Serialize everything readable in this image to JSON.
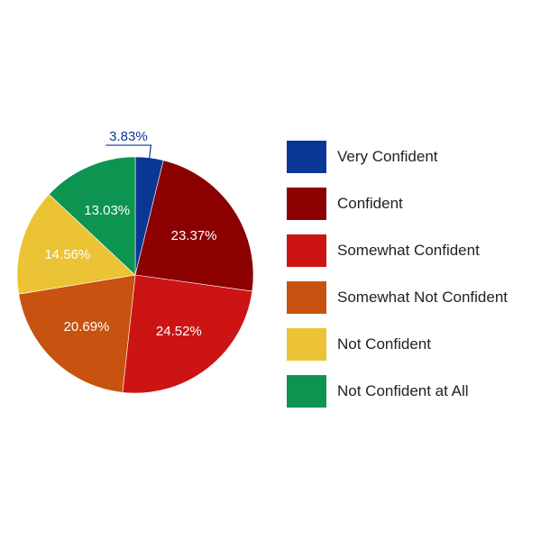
{
  "chart_data": {
    "type": "pie",
    "title": "",
    "categories": [
      "Very Confident",
      "Confident",
      "Somewhat Confident",
      "Somewhat Not Confident",
      "Not Confident",
      "Not Confident at All"
    ],
    "values": [
      3.83,
      23.37,
      24.52,
      20.69,
      14.56,
      13.03
    ],
    "labels": [
      "3.83%",
      "23.37%",
      "24.52%",
      "20.69%",
      "14.56%",
      "13.03%"
    ],
    "colors": [
      "#0a3796",
      "#8b0000",
      "#cc1414",
      "#c8520f",
      "#ebc334",
      "#0c9450"
    ],
    "legend_position": "right"
  }
}
